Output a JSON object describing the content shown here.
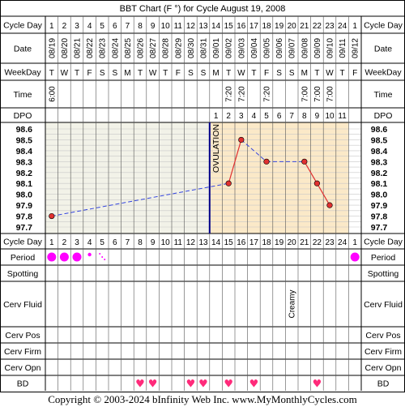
{
  "chart_data": {
    "type": "line",
    "title": "BBT Chart (F °) for Cycle August 19, 2008",
    "cycle_days": [
      1,
      2,
      3,
      4,
      5,
      6,
      7,
      8,
      9,
      10,
      11,
      12,
      13,
      14,
      15,
      16,
      17,
      18,
      19,
      20,
      21,
      22,
      23,
      24,
      1
    ],
    "dates": [
      "08/19",
      "08/20",
      "08/21",
      "08/22",
      "08/23",
      "08/24",
      "08/25",
      "08/26",
      "08/27",
      "08/28",
      "08/29",
      "08/30",
      "08/31",
      "09/01",
      "09/02",
      "09/03",
      "09/04",
      "09/05",
      "09/06",
      "09/07",
      "09/08",
      "09/09",
      "09/10",
      "09/11",
      "09/12"
    ],
    "weekdays": [
      "T",
      "W",
      "T",
      "F",
      "S",
      "S",
      "M",
      "T",
      "W",
      "T",
      "F",
      "S",
      "S",
      "M",
      "T",
      "W",
      "T",
      "F",
      "S",
      "S",
      "M",
      "T",
      "W",
      "T",
      "F"
    ],
    "times": [
      "6:00",
      "",
      "",
      "",
      "",
      "",
      "",
      "",
      "",
      "",
      "",
      "",
      "",
      "",
      "7:20",
      "7:20",
      "",
      "7:20",
      "",
      "",
      "7:00",
      "7:00",
      "7:00",
      "",
      ""
    ],
    "dpo": [
      "",
      "",
      "",
      "",
      "",
      "",
      "",
      "",
      "",
      "",
      "",
      "",
      "",
      "1",
      "2",
      "3",
      "4",
      "5",
      "6",
      "7",
      "8",
      "9",
      "10",
      "11",
      ""
    ],
    "ylim": [
      97.7,
      98.6
    ],
    "y_ticks": [
      "98.6",
      "98.5",
      "98.4",
      "98.3",
      "98.2",
      "98.1",
      "98.0",
      "97.9",
      "97.8",
      "97.7"
    ],
    "temps": [
      {
        "day": 1,
        "temp": 97.8
      },
      {
        "day": 15,
        "temp": 98.1
      },
      {
        "day": 16,
        "temp": 98.5
      },
      {
        "day": 18,
        "temp": 98.3
      },
      {
        "day": 21,
        "temp": 98.3
      },
      {
        "day": 22,
        "temp": 98.1
      },
      {
        "day": 23,
        "temp": 97.9
      }
    ],
    "dashed_segments": [
      [
        1,
        15
      ],
      [
        16,
        18
      ],
      [
        18,
        21
      ]
    ],
    "ovulation_day": 13,
    "ovulation_label": "OVULATION",
    "line_color": "#e03030",
    "dashed_color": "#3344dd",
    "ovulation_color": "#000088",
    "luteal_shade": "#fbe9c8",
    "follicular_shade": "#f2f2e8"
  },
  "labels": {
    "cycle_day": "Cycle Day",
    "date": "Date",
    "weekday": "WeekDay",
    "time": "Time",
    "dpo": "DPO",
    "period": "Period",
    "spotting": "Spotting",
    "cerv_fluid": "Cerv Fluid",
    "cerv_pos": "Cerv Pos",
    "cerv_firm": "Cerv Firm",
    "cerv_opn": "Cerv Opn",
    "bd": "BD"
  },
  "period": [
    {
      "day": 1,
      "size": "large"
    },
    {
      "day": 2,
      "size": "large"
    },
    {
      "day": 3,
      "size": "large"
    },
    {
      "day": 4,
      "size": "small"
    },
    {
      "day": 5,
      "size": "spotting-dots"
    },
    {
      "day": 25,
      "size": "large"
    }
  ],
  "period_color": "#ff00ff",
  "cerv_fluid": [
    {
      "day": 20,
      "text": "Creamy"
    }
  ],
  "bd_days": [
    8,
    9,
    12,
    13,
    15,
    17,
    22
  ],
  "bd_color": "#ff2a7a",
  "footer": "Copyright © 2003-2024 bInfinity Web Inc.    www.MyMonthlyCycles.com"
}
